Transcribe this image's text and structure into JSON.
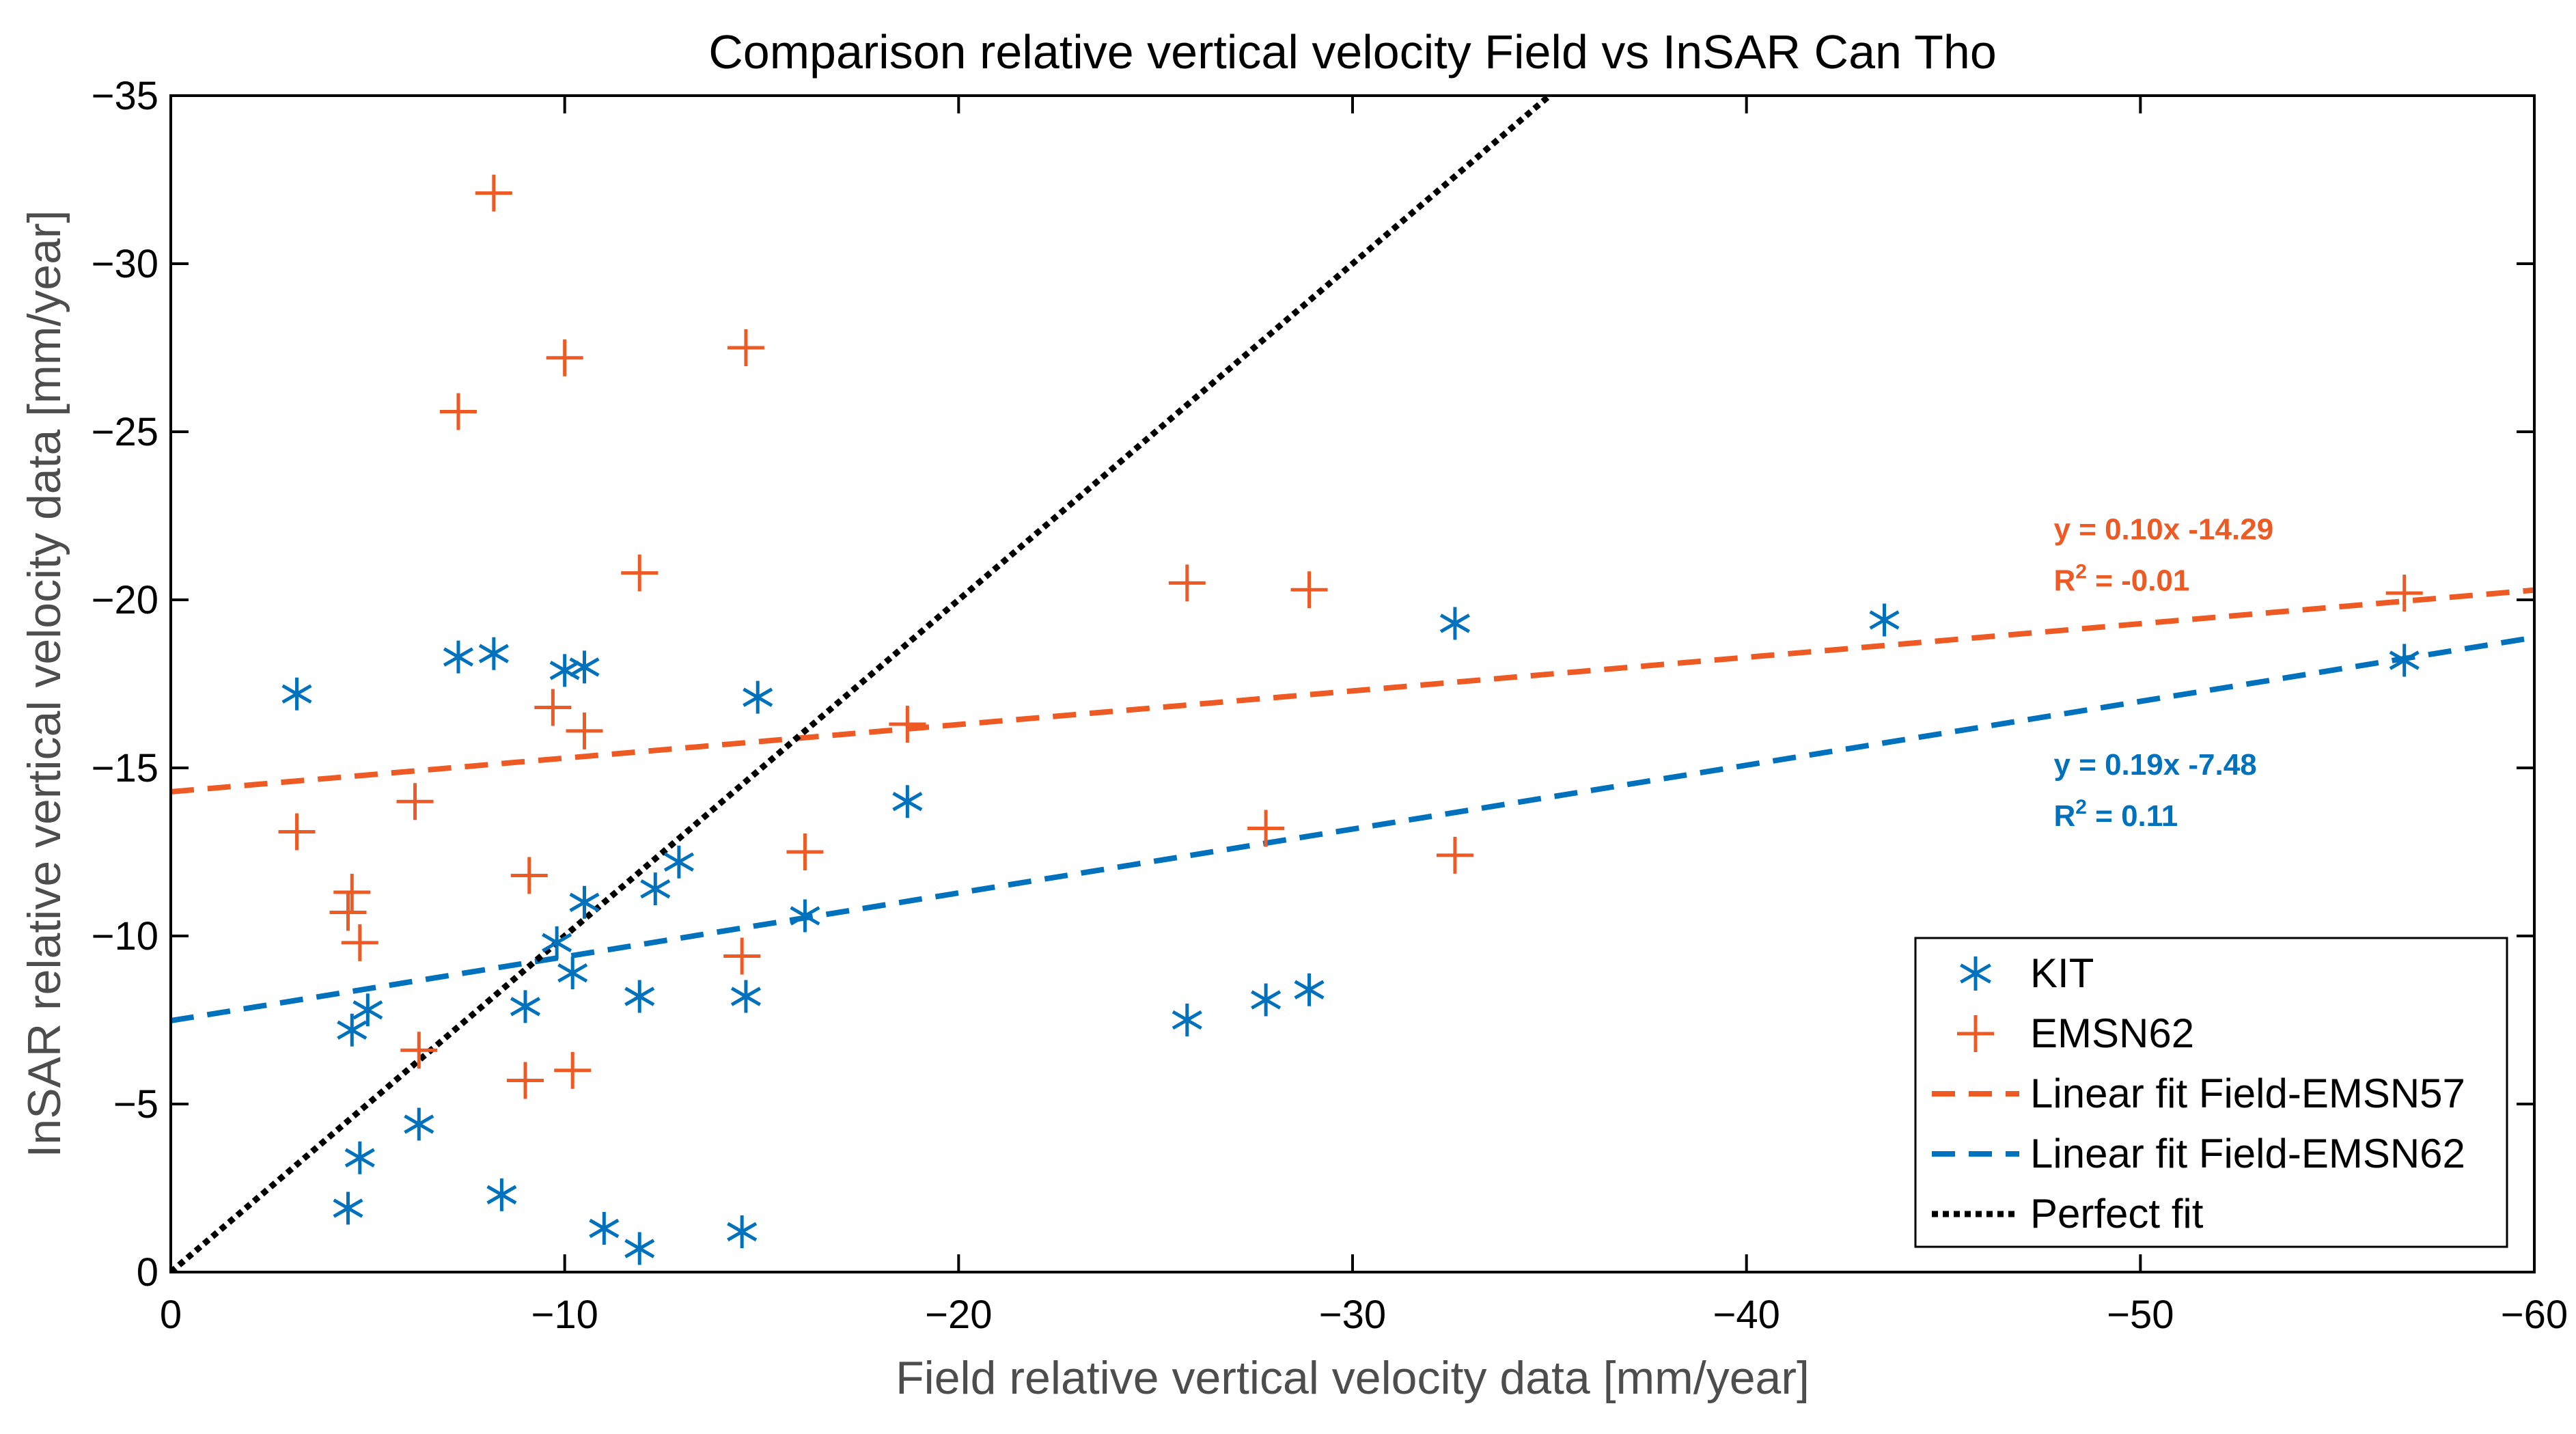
{
  "chart_data": {
    "type": "scatter",
    "title": "Comparison relative vertical velocity Field vs InSAR Can Tho",
    "xlabel": "Field relative vertical velocity data [mm/year]",
    "ylabel": "InSAR relative vertical velocity data [mm/year]",
    "xlim": [
      0,
      -60
    ],
    "ylim": [
      0,
      -35
    ],
    "xticks": [
      0,
      -10,
      -20,
      -30,
      -40,
      -50,
      -60
    ],
    "yticks": [
      0,
      -5,
      -10,
      -15,
      -20,
      -25,
      -30,
      -35
    ],
    "xtick_labels": [
      "0",
      "−10",
      "−20",
      "−30",
      "−40",
      "−50",
      "−60"
    ],
    "ytick_labels": [
      "0",
      "−5",
      "−10",
      "−15",
      "−20",
      "−25",
      "−30",
      "−35"
    ],
    "grid": false,
    "legend_position": "bottom-right",
    "series": [
      {
        "name": "KIT",
        "marker": "asterisk",
        "color": "#0072BD",
        "points": [
          [
            -3.2,
            -17.2
          ],
          [
            -7.3,
            -18.3
          ],
          [
            -8.2,
            -18.4
          ],
          [
            -10.0,
            -17.9
          ],
          [
            -10.5,
            -18.0
          ],
          [
            -14.9,
            -17.1
          ],
          [
            -18.7,
            -14.0
          ],
          [
            -32.6,
            -19.3
          ],
          [
            -43.5,
            -19.4
          ],
          [
            -56.7,
            -18.2
          ],
          [
            -4.6,
            -7.2
          ],
          [
            -5.0,
            -7.8
          ],
          [
            -4.8,
            -3.4
          ],
          [
            -6.3,
            -4.4
          ],
          [
            -4.5,
            -1.9
          ],
          [
            -8.4,
            -2.3
          ],
          [
            -9.0,
            -7.9
          ],
          [
            -9.8,
            -9.8
          ],
          [
            -10.2,
            -8.9
          ],
          [
            -10.5,
            -11.0
          ],
          [
            -11.9,
            -8.2
          ],
          [
            -12.3,
            -11.4
          ],
          [
            -12.9,
            -12.2
          ],
          [
            -14.6,
            -8.2
          ],
          [
            -16.1,
            -10.6
          ],
          [
            -11.0,
            -1.3
          ],
          [
            -11.9,
            -0.7
          ],
          [
            -14.5,
            -1.2
          ],
          [
            -25.8,
            -7.5
          ],
          [
            -27.8,
            -8.1
          ],
          [
            -28.9,
            -8.4
          ]
        ]
      },
      {
        "name": "EMSN62",
        "marker": "plus",
        "color": "#EE5A24",
        "points": [
          [
            -8.2,
            -32.1
          ],
          [
            -10.0,
            -27.2
          ],
          [
            -14.6,
            -27.5
          ],
          [
            -7.3,
            -25.6
          ],
          [
            -11.9,
            -20.8
          ],
          [
            -9.7,
            -16.8
          ],
          [
            -10.5,
            -16.1
          ],
          [
            -18.7,
            -16.3
          ],
          [
            -3.2,
            -13.1
          ],
          [
            -6.2,
            -14.0
          ],
          [
            -4.6,
            -11.3
          ],
          [
            -4.5,
            -10.7
          ],
          [
            -4.8,
            -9.8
          ],
          [
            -9.1,
            -11.8
          ],
          [
            -16.1,
            -12.5
          ],
          [
            -14.5,
            -9.4
          ],
          [
            -6.3,
            -6.6
          ],
          [
            -9.0,
            -5.7
          ],
          [
            -10.2,
            -6.0
          ],
          [
            -25.8,
            -20.5
          ],
          [
            -28.9,
            -20.3
          ],
          [
            -27.8,
            -13.2
          ],
          [
            -32.6,
            -12.4
          ],
          [
            -56.7,
            -20.2
          ]
        ]
      }
    ],
    "fits": [
      {
        "name": "Linear fit Field-EMSN57",
        "color": "#EE5A24",
        "style": "dashed",
        "slope": 0.1,
        "intercept": -14.29,
        "x_range": [
          0,
          -60
        ]
      },
      {
        "name": "Linear fit Field-EMSN62",
        "color": "#0072BD",
        "style": "dashed",
        "slope": 0.19,
        "intercept": -7.48,
        "x_range": [
          0,
          -60
        ]
      },
      {
        "name": "Perfect fit",
        "color": "#000000",
        "style": "dotted",
        "slope": 1.0,
        "intercept": 0,
        "x_range": [
          0,
          -60
        ]
      }
    ],
    "annotations": [
      {
        "series": "EMSN57",
        "equation": "y = 0.10x -14.29",
        "r2_prefix": "R",
        "r2_sup": "2",
        "r2_value": " = -0.01",
        "color": "#EE5A24",
        "anchor_x": -47.8,
        "anchor_y": -21.8
      },
      {
        "series": "EMSN62",
        "equation": "y = 0.19x -7.48",
        "r2_prefix": "R",
        "r2_sup": "2",
        "r2_value": " = 0.11",
        "color": "#0072BD",
        "anchor_x": -47.8,
        "anchor_y": -14.8
      }
    ],
    "legend": [
      {
        "label": "KIT",
        "kind": "asterisk",
        "color": "#0072BD"
      },
      {
        "label": "EMSN62",
        "kind": "plus",
        "color": "#EE5A24"
      },
      {
        "label": "Linear fit Field-EMSN57",
        "kind": "dashed",
        "color": "#EE5A24"
      },
      {
        "label": "Linear fit Field-EMSN62",
        "kind": "dashed",
        "color": "#0072BD"
      },
      {
        "label": "Perfect fit",
        "kind": "dotted",
        "color": "#000000"
      }
    ]
  }
}
